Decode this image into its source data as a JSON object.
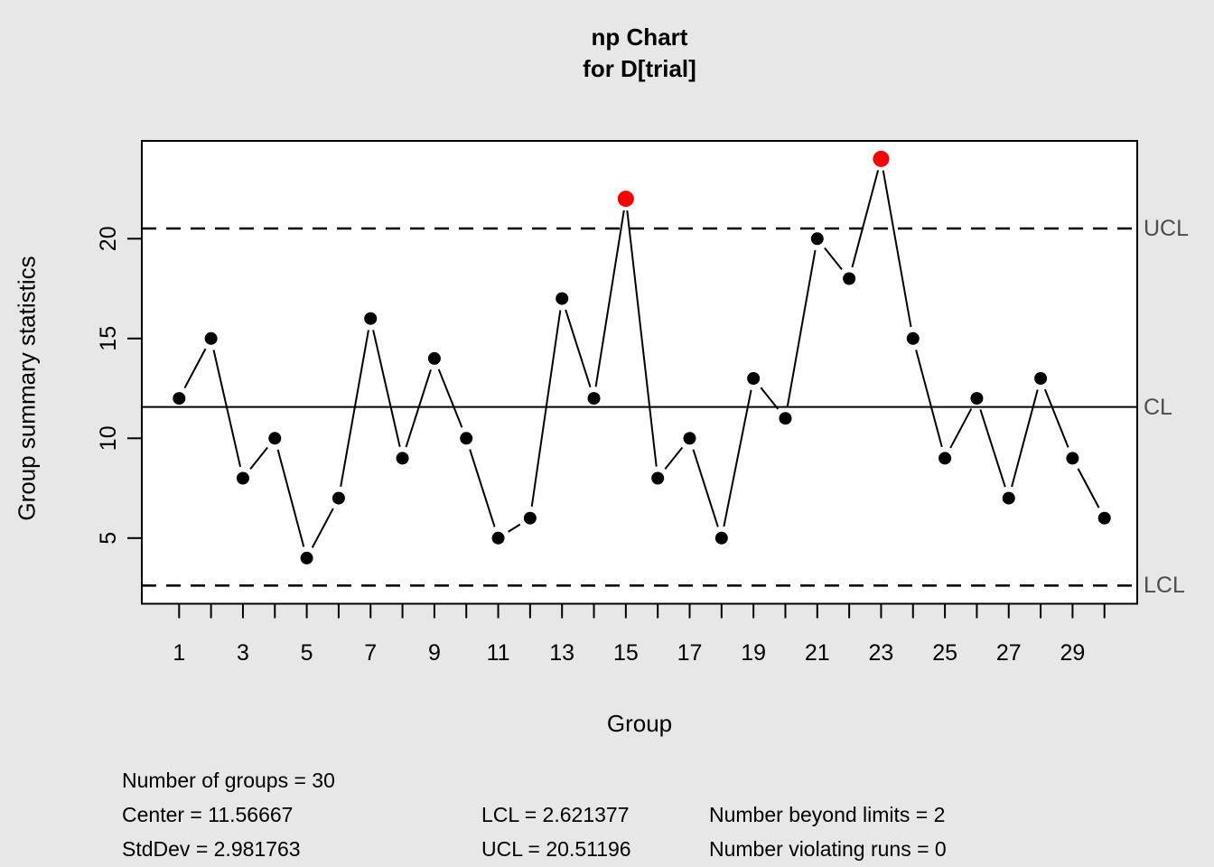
{
  "title": {
    "line1": "np Chart",
    "line2": "for D[trial]"
  },
  "axes": {
    "y_label": "Group summary statistics",
    "x_label": "Group",
    "y_tick_labels": [
      "5",
      "10",
      "15",
      "20"
    ],
    "x_tick_labels": [
      "1",
      "3",
      "5",
      "7",
      "9",
      "11",
      "13",
      "15",
      "17",
      "19",
      "21",
      "23",
      "25",
      "27",
      "29"
    ]
  },
  "limit_labels": {
    "ucl": "UCL",
    "cl": "CL",
    "lcl": "LCL"
  },
  "stats": {
    "col1": [
      "Number of groups = 30",
      "Center = 11.56667",
      "StdDev = 2.981763"
    ],
    "col2": [
      "LCL = 2.621377",
      "UCL = 20.51196"
    ],
    "col3": [
      "Number beyond limits = 2",
      "Number violating runs = 0"
    ]
  },
  "chart_data": {
    "type": "line",
    "title": "np Chart for D[trial]",
    "xlabel": "Group",
    "ylabel": "Group summary statistics",
    "x": [
      1,
      2,
      3,
      4,
      5,
      6,
      7,
      8,
      9,
      10,
      11,
      12,
      13,
      14,
      15,
      16,
      17,
      18,
      19,
      20,
      21,
      22,
      23,
      24,
      25,
      26,
      27,
      28,
      29,
      30
    ],
    "values": [
      12,
      15,
      8,
      10,
      4,
      7,
      16,
      9,
      14,
      10,
      5,
      6,
      17,
      12,
      22,
      8,
      10,
      5,
      13,
      11,
      20,
      18,
      24,
      15,
      9,
      12,
      7,
      13,
      9,
      6
    ],
    "center": 11.56667,
    "stddev": 2.981763,
    "lcl": 2.621377,
    "ucl": 20.51196,
    "number_of_groups": 30,
    "number_beyond_limits": 2,
    "number_violating_runs": 0,
    "beyond_limit_points": [
      15,
      23
    ],
    "y_ticks": [
      5,
      10,
      15,
      20
    ],
    "ylim": [
      1.75,
      24.9
    ],
    "legend_position": "right-margin-limit-labels",
    "grid": false,
    "colors": {
      "point": "#000000",
      "beyond_limit": "#ff0000",
      "line": "#000000",
      "limit_label": "#4d4d4d",
      "background": "#e7e7e7",
      "plot_background": "#ffffff"
    }
  }
}
